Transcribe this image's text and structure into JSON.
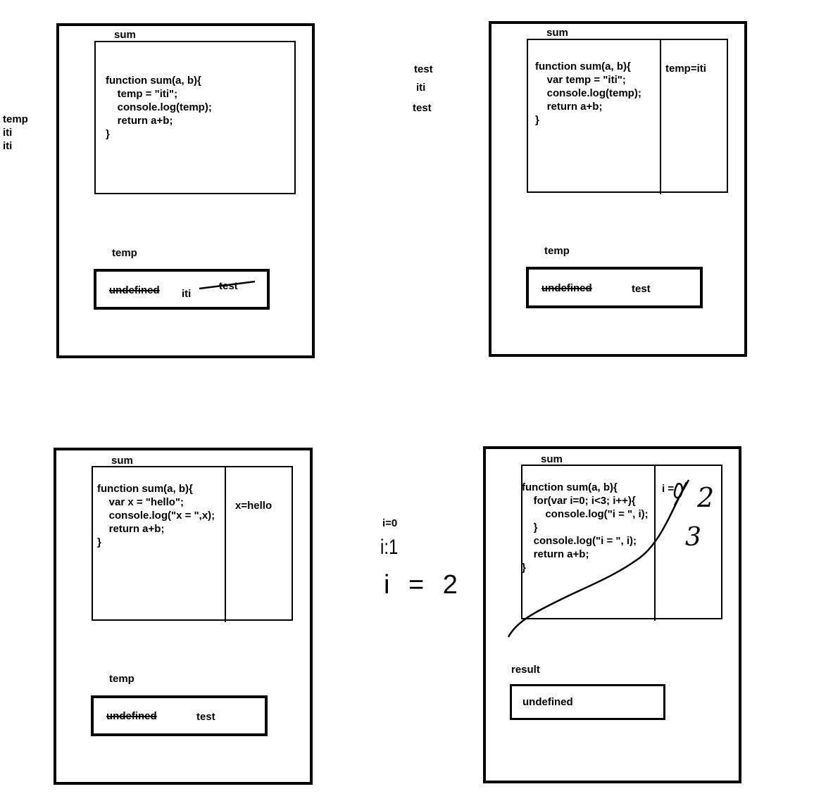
{
  "side_notes": {
    "left": [
      "temp",
      "iti",
      "iti"
    ],
    "middle_top": [
      "test",
      "iti",
      "test"
    ],
    "middle_bottom": [
      "i=0",
      "i:1",
      "i = 2"
    ]
  },
  "panel1": {
    "scope_label": "sum",
    "code": "function sum(a, b){\n    temp = \"iti\";\n    console.log(temp);\n    return a+b;\n}",
    "var_label": "temp",
    "values": {
      "crossed_1": "undefined",
      "current": "iti",
      "crossed_2": "test"
    }
  },
  "panel2": {
    "scope_label": "sum",
    "code": "function sum(a, b){\n    var temp = \"iti\";\n    console.log(temp);\n    return a+b;\n}",
    "local": "temp=iti",
    "var_label": "temp",
    "values": {
      "crossed": "undefined",
      "current": "test"
    }
  },
  "panel3": {
    "scope_label": "sum",
    "code": "function sum(a, b){\n    var x = \"hello\";\n    console.log(\"x = \",x);\n    return a+b;\n}",
    "local": "x=hello",
    "var_label": "temp",
    "values": {
      "crossed": "undefined",
      "current": "test"
    }
  },
  "panel4": {
    "scope_label": "sum",
    "code": "function sum(a, b){\n    for(var i=0; i<3; i++){\n        console.log(\"i = \", i);\n    }\n    console.log(\"i = \", i);\n    return a+b;\n}",
    "local": "i =",
    "handwritten": [
      "2",
      "3"
    ],
    "var_label": "result",
    "value": "undefined"
  }
}
